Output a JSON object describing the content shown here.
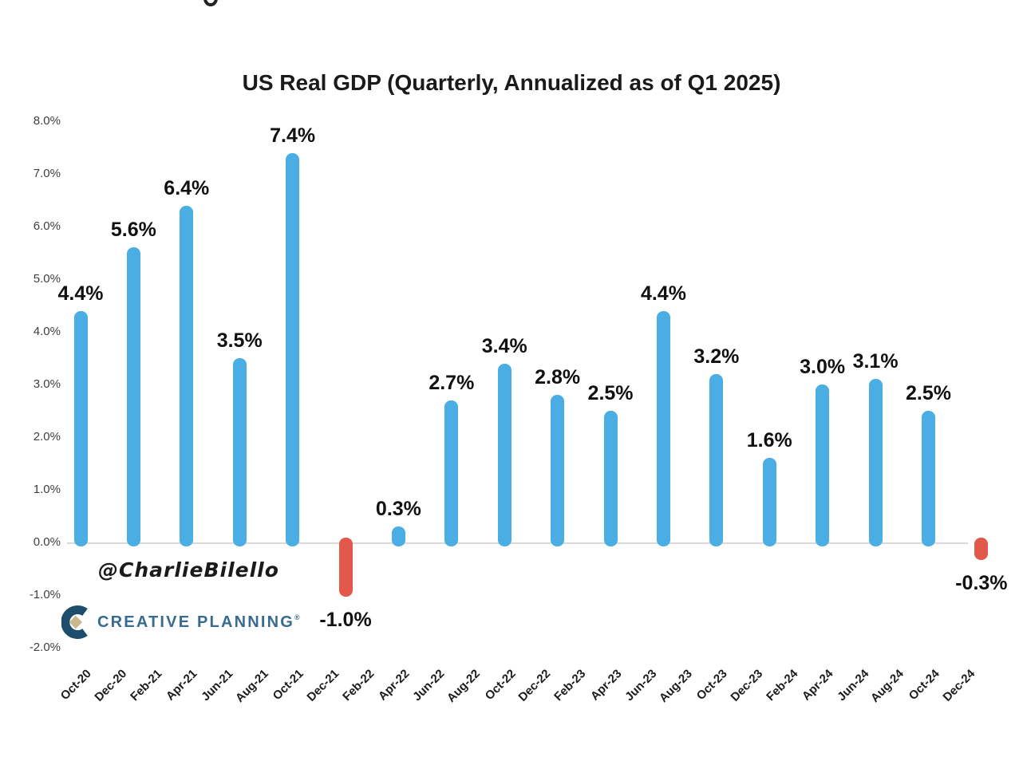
{
  "header": {
    "title": "US Real GDP (Quarterly, Annualized as of Q1 2025)"
  },
  "watermark": {
    "handle": "@CharlieBilello"
  },
  "logo": {
    "text": "CREATIVE PLANNING",
    "registered_mark": "®",
    "icon": "creative-planning-c-icon",
    "icon_navy": "#1d4d6b",
    "icon_gold": "#c9b78e",
    "text_color": "#376b90"
  },
  "chart_data": {
    "type": "bar",
    "title": "US Real GDP (Quarterly, Annualized as of Q1 2025)",
    "unit": "%",
    "ylim": [
      -2,
      8
    ],
    "grid": false,
    "legend": false,
    "bar_color_positive": "#4aade3",
    "bar_color_negative": "#e2584a",
    "axis_line_color": "#d9d9d9",
    "y_ticks": [
      "8.0%",
      "7.0%",
      "6.0%",
      "5.0%",
      "4.0%",
      "3.0%",
      "2.0%",
      "1.0%",
      "0.0%",
      "-1.0%",
      "-2.0%"
    ],
    "x_ticks": [
      "Oct-20",
      "Dec-20",
      "Feb-21",
      "Apr-21",
      "Jun-21",
      "Aug-21",
      "Oct-21",
      "Dec-21",
      "Feb-22",
      "Apr-22",
      "Jun-22",
      "Aug-22",
      "Oct-22",
      "Dec-22",
      "Feb-23",
      "Apr-23",
      "Jun-23",
      "Aug-23",
      "Oct-23",
      "Dec-23",
      "Feb-24",
      "Apr-24",
      "Jun-24",
      "Aug-24",
      "Oct-24",
      "Dec-24"
    ],
    "x_tick_month_step": 2,
    "bars": [
      {
        "month": 0,
        "value": 4.4,
        "label": "4.4%"
      },
      {
        "month": 3,
        "value": 5.6,
        "label": "5.6%"
      },
      {
        "month": 6,
        "value": 6.4,
        "label": "6.4%"
      },
      {
        "month": 9,
        "value": 3.5,
        "label": "3.5%"
      },
      {
        "month": 12,
        "value": 7.4,
        "label": "7.4%"
      },
      {
        "month": 15,
        "value": -1.0,
        "label": "-1.0%"
      },
      {
        "month": 18,
        "value": 0.3,
        "label": "0.3%"
      },
      {
        "month": 21,
        "value": 2.7,
        "label": "2.7%"
      },
      {
        "month": 24,
        "value": 3.4,
        "label": "3.4%"
      },
      {
        "month": 27,
        "value": 2.8,
        "label": "2.8%"
      },
      {
        "month": 30,
        "value": 2.5,
        "label": "2.5%"
      },
      {
        "month": 33,
        "value": 4.4,
        "label": "4.4%"
      },
      {
        "month": 36,
        "value": 3.2,
        "label": "3.2%"
      },
      {
        "month": 39,
        "value": 1.6,
        "label": "1.6%"
      },
      {
        "month": 42,
        "value": 3.0,
        "label": "3.0%"
      },
      {
        "month": 45,
        "value": 3.1,
        "label": "3.1%"
      },
      {
        "month": 48,
        "value": 2.5,
        "label": "2.5%"
      },
      {
        "month": 51,
        "value": -0.3,
        "label": "-0.3%"
      }
    ]
  }
}
